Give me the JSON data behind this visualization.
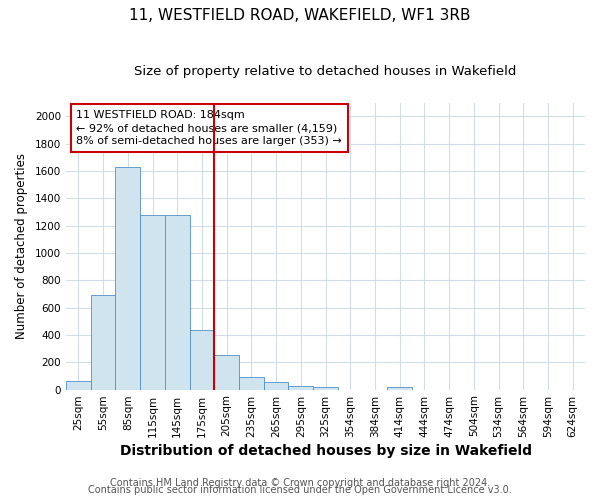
{
  "title": "11, WESTFIELD ROAD, WAKEFIELD, WF1 3RB",
  "subtitle": "Size of property relative to detached houses in Wakefield",
  "xlabel": "Distribution of detached houses by size in Wakefield",
  "ylabel": "Number of detached properties",
  "footer_line1": "Contains HM Land Registry data © Crown copyright and database right 2024.",
  "footer_line2": "Contains public sector information licensed under the Open Government Licence v3.0.",
  "bar_labels": [
    "25sqm",
    "55sqm",
    "85sqm",
    "115sqm",
    "145sqm",
    "175sqm",
    "205sqm",
    "235sqm",
    "265sqm",
    "295sqm",
    "325sqm",
    "354sqm",
    "384sqm",
    "414sqm",
    "444sqm",
    "474sqm",
    "504sqm",
    "534sqm",
    "564sqm",
    "594sqm",
    "624sqm"
  ],
  "bar_values": [
    65,
    690,
    1630,
    1275,
    1275,
    435,
    252,
    90,
    52,
    28,
    20,
    0,
    0,
    18,
    0,
    0,
    0,
    0,
    0,
    0,
    0
  ],
  "bar_width": 1.0,
  "bar_color": "#d0e4f0",
  "bar_edge_color": "#5090c8",
  "vline_x": 5.5,
  "vline_color": "#cc0000",
  "vline_lw": 1.5,
  "annotation_text": "11 WESTFIELD ROAD: 184sqm\n← 92% of detached houses are smaller (4,159)\n8% of semi-detached houses are larger (353) →",
  "ylim": [
    0,
    2100
  ],
  "yticks": [
    0,
    200,
    400,
    600,
    800,
    1000,
    1200,
    1400,
    1600,
    1800,
    2000
  ],
  "background_color": "#ffffff",
  "plot_background": "#ffffff",
  "grid_color": "#d0dce8",
  "title_fontsize": 11,
  "subtitle_fontsize": 9.5,
  "xlabel_fontsize": 10,
  "ylabel_fontsize": 8.5,
  "tick_fontsize": 7.5,
  "annotation_fontsize": 8,
  "footer_fontsize": 7
}
